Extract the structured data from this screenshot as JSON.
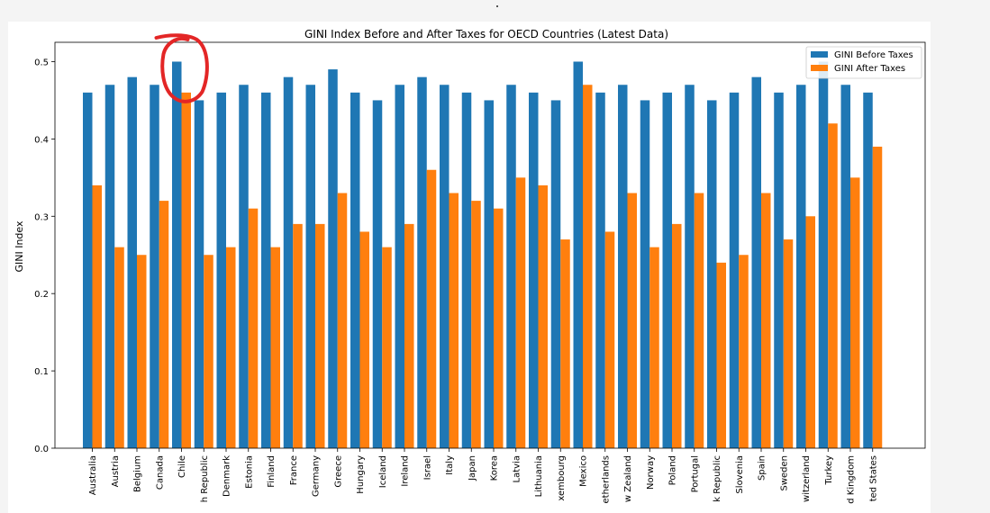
{
  "colors": {
    "before": "#1f77b4",
    "after": "#ff7f0e",
    "annotation": "#e32626",
    "axis": "#000000"
  },
  "chart_data": {
    "type": "bar",
    "title": "GINI Index Before and After Taxes for OECD Countries (Latest Data)",
    "xlabel": "",
    "ylabel": "GINI Index",
    "ylim": [
      0,
      0.525
    ],
    "yticks": [
      0.0,
      0.1,
      0.2,
      0.3,
      0.4,
      0.5
    ],
    "ytick_labels": [
      "0.0",
      "0.1",
      "0.2",
      "0.3",
      "0.4",
      "0.5"
    ],
    "legend_position": "top-right",
    "grid": false,
    "categories": [
      "Australia",
      "Austria",
      "Belgium",
      "Canada",
      "Chile",
      "Czech Republic",
      "Denmark",
      "Estonia",
      "Finland",
      "France",
      "Germany",
      "Greece",
      "Hungary",
      "Iceland",
      "Ireland",
      "Israel",
      "Italy",
      "Japan",
      "Korea",
      "Latvia",
      "Lithuania",
      "Luxembourg",
      "Mexico",
      "Netherlands",
      "New Zealand",
      "Norway",
      "Poland",
      "Portugal",
      "Slovak Republic",
      "Slovenia",
      "Spain",
      "Sweden",
      "Switzerland",
      "Turkey",
      "United Kingdom",
      "United States"
    ],
    "tick_labels": [
      "Australia",
      "Austria",
      "Belgium",
      "Canada",
      "Chile",
      "h Republic",
      "Denmark",
      "Estonia",
      "Finland",
      "France",
      "Germany",
      "Greece",
      "Hungary",
      "Iceland",
      "Ireland",
      "Israel",
      "Italy",
      "Japan",
      "Korea",
      "Latvia",
      "Lithuania",
      "xembourg",
      "Mexico",
      "etherlands",
      "w Zealand",
      "Norway",
      "Poland",
      "Portugal",
      "k Republic",
      "Slovenia",
      "Spain",
      "Sweden",
      "witzerland",
      "Turkey",
      "d Kingdom",
      "ted States"
    ],
    "series": [
      {
        "name": "GINI Before Taxes",
        "color_key": "before",
        "values": [
          0.46,
          0.47,
          0.48,
          0.47,
          0.5,
          0.45,
          0.46,
          0.47,
          0.46,
          0.48,
          0.47,
          0.49,
          0.46,
          0.45,
          0.47,
          0.48,
          0.47,
          0.46,
          0.45,
          0.47,
          0.46,
          0.45,
          0.5,
          0.46,
          0.47,
          0.45,
          0.46,
          0.47,
          0.45,
          0.46,
          0.48,
          0.46,
          0.47,
          0.5,
          0.47,
          0.46
        ]
      },
      {
        "name": "GINI After Taxes",
        "color_key": "after",
        "values": [
          0.34,
          0.26,
          0.25,
          0.32,
          0.46,
          0.25,
          0.26,
          0.31,
          0.26,
          0.29,
          0.29,
          0.33,
          0.28,
          0.26,
          0.29,
          0.36,
          0.33,
          0.32,
          0.31,
          0.35,
          0.34,
          0.27,
          0.47,
          0.28,
          0.33,
          0.26,
          0.29,
          0.33,
          0.24,
          0.25,
          0.33,
          0.27,
          0.3,
          0.42,
          0.35,
          0.39
        ]
      }
    ],
    "annotation": {
      "type": "hand-drawn-circle",
      "target": "Chile"
    }
  }
}
